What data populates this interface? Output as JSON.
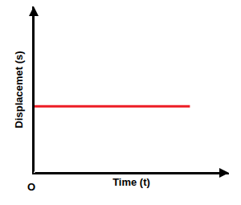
{
  "chart_data": {
    "type": "line",
    "x_label": "Time (t)",
    "y_label": "Displacemet (s)",
    "annotations": [
      "O"
    ],
    "x": [
      0,
      8
    ],
    "values": [
      4,
      4
    ],
    "color": "#ed1c24",
    "xlim": [
      0,
      10
    ],
    "ylim": [
      0,
      10
    ],
    "xticks": [],
    "yticks": [],
    "grid": false,
    "tick_labels": false
  }
}
